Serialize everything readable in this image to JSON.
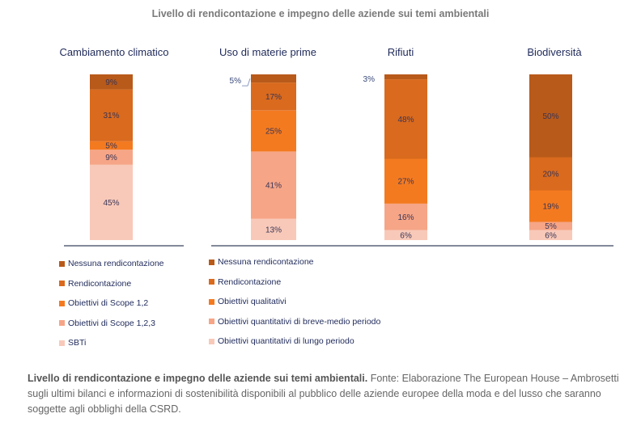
{
  "chart_data": {
    "type": "bar",
    "stacked": true,
    "title": "Livello di rendicontazione e impegno delle aziende sui temi ambientali",
    "ylim": [
      0,
      100
    ],
    "categories": [
      "Cambiamento climatico",
      "Uso di materie prime",
      "Rifiuti",
      "Biodiversità"
    ],
    "colors": [
      "#b85a1a",
      "#d96a1e",
      "#f47a20",
      "#f6a587",
      "#f8c9b9"
    ],
    "bars": [
      {
        "category": "Cambiamento climatico",
        "segments": [
          {
            "series": "Nessuna rendicontazione",
            "value": 9,
            "label": "9%"
          },
          {
            "series": "Rendicontazione",
            "value": 31,
            "label": "31%"
          },
          {
            "series": "Obiettivi di Scope 1,2",
            "value": 5,
            "label": "5%"
          },
          {
            "series": "Obiettivi di Scope 1,2,3",
            "value": 9,
            "label": "9%"
          },
          {
            "series": "SBTi",
            "value": 45,
            "label": "45%"
          }
        ]
      },
      {
        "category": "Uso di materie prime",
        "segments": [
          {
            "series": "Nessuna rendicontazione",
            "value": 5,
            "label": "5%",
            "outside": true
          },
          {
            "series": "Rendicontazione",
            "value": 17,
            "label": "17%"
          },
          {
            "series": "Obiettivi qualitativi",
            "value": 25,
            "label": "25%"
          },
          {
            "series": "Obiettivi quantitativi di breve-medio periodo",
            "value": 41,
            "label": "41%"
          },
          {
            "series": "Obiettivi quantitativi di lungo periodo",
            "value": 13,
            "label": "13%"
          }
        ]
      },
      {
        "category": "Rifiuti",
        "segments": [
          {
            "series": "Nessuna rendicontazione",
            "value": 3,
            "label": "3%",
            "outside": true
          },
          {
            "series": "Rendicontazione",
            "value": 48,
            "label": "48%"
          },
          {
            "series": "Obiettivi qualitativi",
            "value": 27,
            "label": "27%"
          },
          {
            "series": "Obiettivi quantitativi di breve-medio periodo",
            "value": 16,
            "label": "16%"
          },
          {
            "series": "Obiettivi quantitativi di lungo periodo",
            "value": 6,
            "label": "6%"
          }
        ]
      },
      {
        "category": "Biodiversità",
        "segments": [
          {
            "series": "Nessuna rendicontazione",
            "value": 50,
            "label": "50%"
          },
          {
            "series": "Rendicontazione",
            "value": 20,
            "label": "20%"
          },
          {
            "series": "Obiettivi qualitativi",
            "value": 19,
            "label": "19%"
          },
          {
            "series": "Obiettivi quantitativi di breve-medio periodo",
            "value": 5,
            "label": "5%"
          },
          {
            "series": "Obiettivi quantitativi di lungo periodo",
            "value": 6,
            "label": "6%"
          }
        ]
      }
    ],
    "legends": [
      {
        "name": "legend-climate",
        "items": [
          "Nessuna rendicontazione",
          "Rendicontazione",
          "Obiettivi di Scope 1,2",
          "Obiettivi di Scope 1,2,3",
          "SBTi"
        ]
      },
      {
        "name": "legend-other",
        "items": [
          "Nessuna rendicontazione",
          "Rendicontazione",
          "Obiettivi qualitativi",
          "Obiettivi quantitativi di breve-medio periodo",
          "Obiettivi quantitativi di lungo periodo"
        ]
      }
    ]
  },
  "caption": {
    "bold": "Livello di rendicontazione e impegno delle aziende sui temi ambientali.",
    "text": " Fonte: Elaborazione The European House – Ambrosetti sugli ultimi bilanci e informazioni di sostenibilità disponibili al pubblico delle aziende europee della moda e del lusso che saranno soggette agli obblighi della CSRD."
  }
}
